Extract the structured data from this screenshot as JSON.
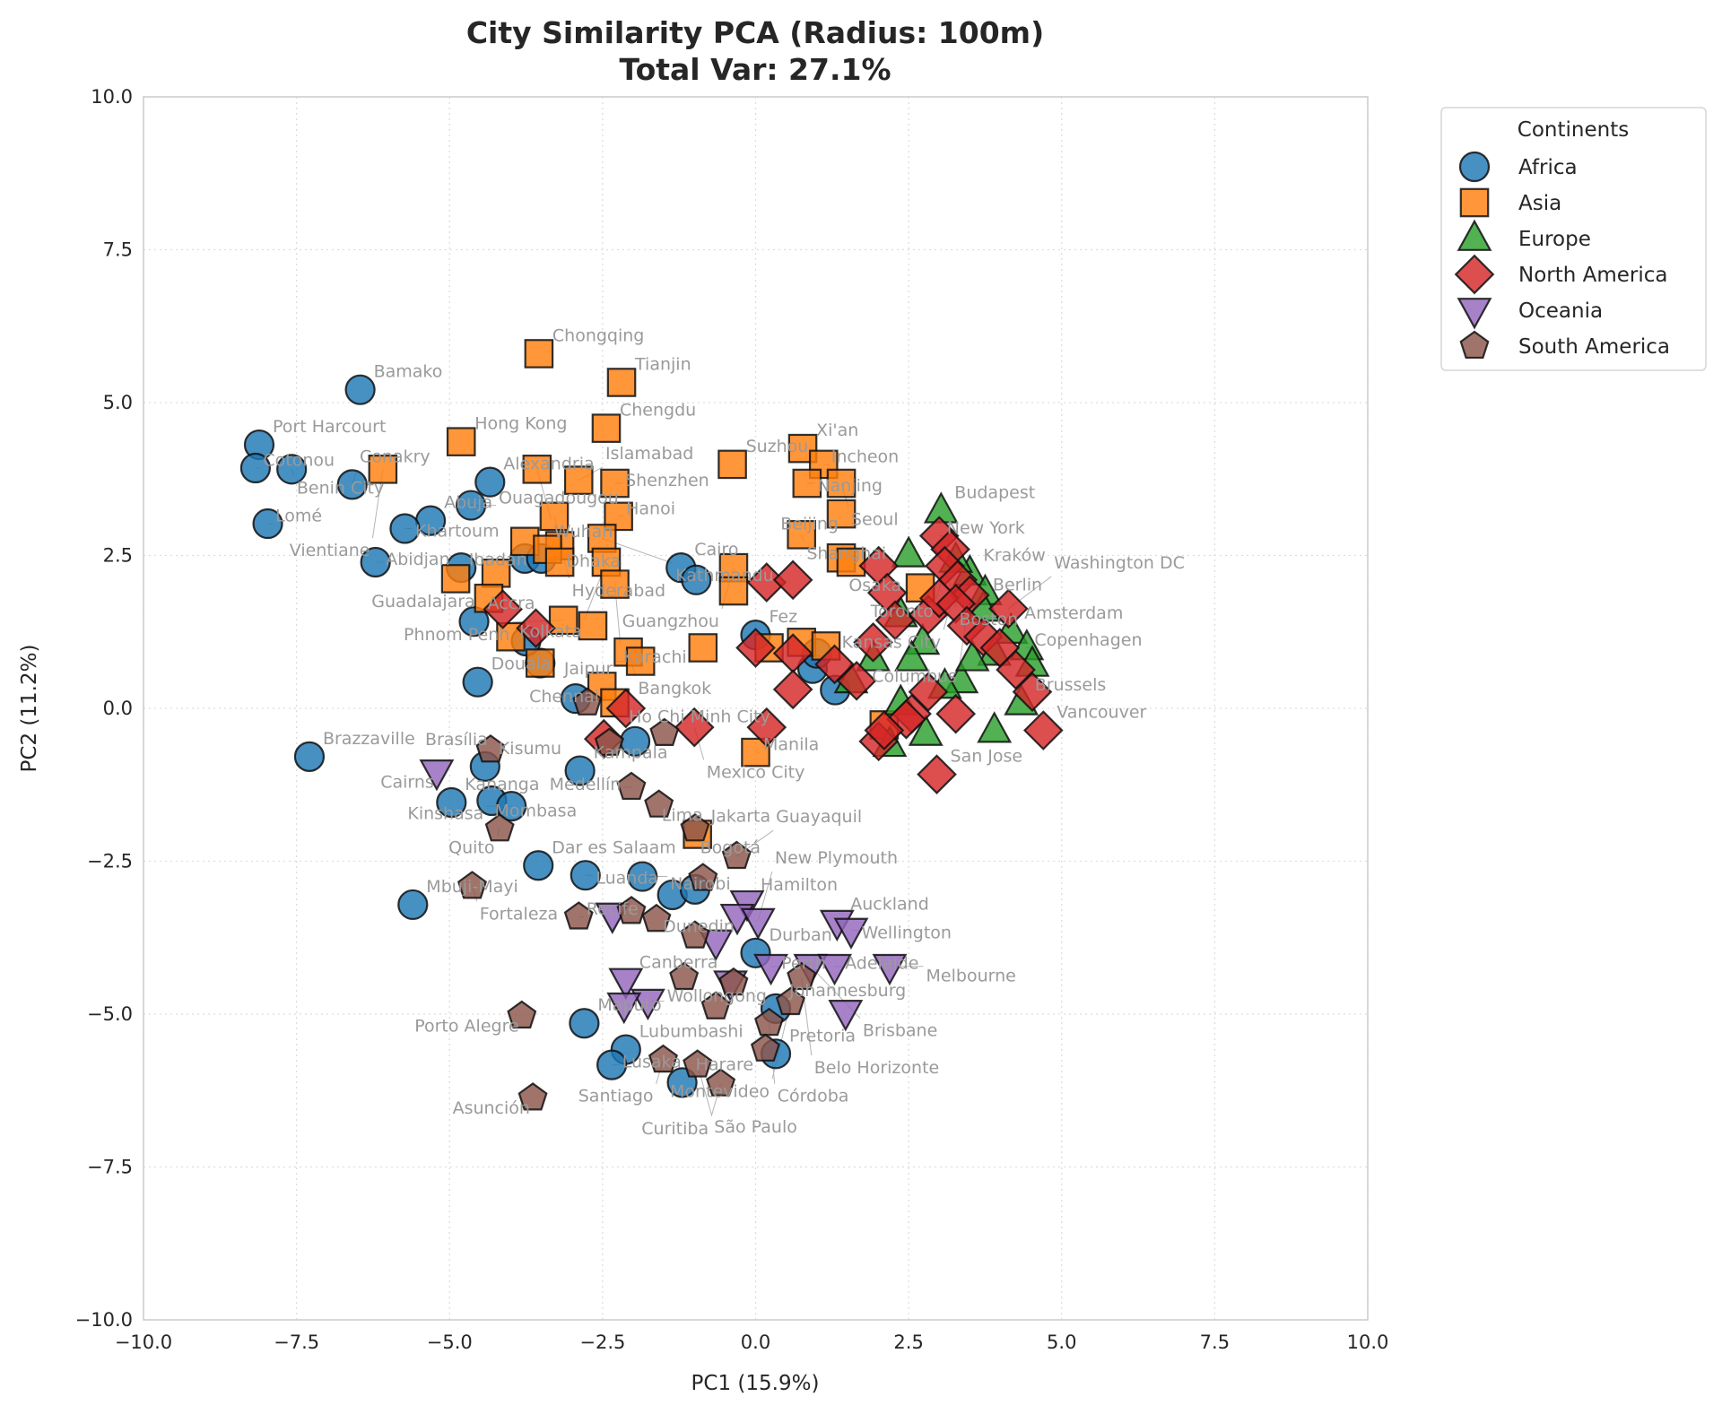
{
  "chart_data": {
    "type": "scatter",
    "title": "City Similarity PCA (Radius: 100m)",
    "subtitle": "Total Var: 27.1%",
    "xlabel": "PC1 (15.9%)",
    "ylabel": "PC2 (11.2%)",
    "xlim": [
      -10,
      10
    ],
    "ylim": [
      -10,
      10
    ],
    "xticks": [
      "−10.0",
      "−7.5",
      "−5.0",
      "−2.5",
      "0.0",
      "2.5",
      "5.0",
      "7.5",
      "10.0"
    ],
    "yticks": [
      "−10.0",
      "−7.5",
      "−5.0",
      "−2.5",
      "0.0",
      "2.5",
      "5.0",
      "7.5",
      "10.0"
    ],
    "grid": true,
    "legend": {
      "title": "Continents",
      "placement": "outside-top-right"
    },
    "series": [
      {
        "name": "Africa",
        "marker": "circle",
        "color": "#1f77b4",
        "points": [
          [
            -6.46,
            5.21,
            "Bamako"
          ],
          [
            -8.11,
            4.31,
            "Port Harcourt"
          ],
          [
            -8.17,
            3.93,
            "Cotonou"
          ],
          [
            -7.58,
            3.91,
            "Benin City"
          ],
          [
            -6.59,
            3.66,
            "Conakry"
          ],
          [
            -7.97,
            3.02,
            "Lomé"
          ],
          [
            -5.31,
            3.07,
            "Abuja"
          ],
          [
            -5.73,
            2.94,
            "Khartoum"
          ],
          [
            -4.65,
            3.32,
            "Ouagadougou"
          ],
          [
            -4.34,
            3.7,
            "Alexandria"
          ],
          [
            -6.21,
            2.39,
            "Abidjan"
          ],
          [
            -4.81,
            2.3,
            "Ibadan"
          ],
          [
            -3.77,
            2.45,
            ""
          ],
          [
            -3.5,
            2.45,
            ""
          ],
          [
            -4.6,
            1.42,
            "Accra"
          ],
          [
            -4.54,
            0.43,
            "Douala"
          ],
          [
            -3.52,
            0.74,
            ""
          ],
          [
            -3.75,
            1.1,
            ""
          ],
          [
            -2.94,
            0.16,
            ""
          ],
          [
            -1.97,
            -0.54,
            ""
          ],
          [
            -2.87,
            -1.02,
            "Kampala"
          ],
          [
            -7.29,
            -0.79,
            "Brazzaville"
          ],
          [
            -4.42,
            -0.95,
            "Kisumu"
          ],
          [
            -4.97,
            -1.54,
            "Kananga"
          ],
          [
            -4.31,
            -1.51,
            "Mombasa"
          ],
          [
            -3.99,
            -1.6,
            "Kinshasa"
          ],
          [
            -3.55,
            -2.57,
            "Dar es Salaam"
          ],
          [
            -2.78,
            -2.73,
            "Luanda"
          ],
          [
            -5.6,
            -3.21,
            "Mbuji-Mayi"
          ],
          [
            -1.85,
            -2.75,
            "Nairobi"
          ],
          [
            -1.36,
            -3.05,
            ""
          ],
          [
            -0.99,
            -2.96,
            ""
          ],
          [
            0.0,
            -4.0,
            "Durban"
          ],
          [
            -2.8,
            -5.15,
            "Maputo"
          ],
          [
            -2.12,
            -5.58,
            "Lubumbashi"
          ],
          [
            -2.35,
            -5.83,
            "Lusaka"
          ],
          [
            -1.2,
            -6.12,
            "Harare"
          ],
          [
            0.33,
            -4.91,
            "Johannesburg"
          ],
          [
            0.33,
            -5.65,
            "Pretoria"
          ],
          [
            -1.22,
            2.3,
            "Cairo"
          ],
          [
            -0.97,
            2.1,
            ""
          ],
          [
            0.0,
            1.2,
            "Fez"
          ],
          [
            0.93,
            0.65,
            ""
          ],
          [
            1.3,
            0.3,
            ""
          ],
          [
            1.0,
            0.9,
            ""
          ]
        ]
      },
      {
        "name": "Asia",
        "marker": "square",
        "color": "#ff7f0e",
        "points": [
          [
            -3.54,
            5.8,
            "Chongqing"
          ],
          [
            -2.19,
            5.33,
            "Tianjin"
          ],
          [
            -2.44,
            4.58,
            "Chengdu"
          ],
          [
            -4.81,
            4.36,
            "Hong Kong"
          ],
          [
            -6.09,
            3.91,
            "Vientiane"
          ],
          [
            -3.57,
            3.91,
            "Wuhan"
          ],
          [
            -2.89,
            3.73,
            "Islamabad"
          ],
          [
            -2.3,
            3.68,
            "Shenzhen"
          ],
          [
            -2.24,
            3.14,
            "Hanoi"
          ],
          [
            -3.29,
            3.14,
            "Dhaka"
          ],
          [
            -3.2,
            2.66,
            "Hyderabad"
          ],
          [
            -2.51,
            2.78,
            "Kathmandu"
          ],
          [
            -0.38,
            3.99,
            "Suzhou"
          ],
          [
            0.77,
            4.25,
            "Xi'an"
          ],
          [
            1.11,
            3.99,
            "Incheon"
          ],
          [
            0.84,
            3.68,
            "Nanjing"
          ],
          [
            1.4,
            3.68,
            "Seoul"
          ],
          [
            1.4,
            3.18,
            "Beijing"
          ],
          [
            0.75,
            2.84,
            "Shanghai"
          ],
          [
            1.4,
            2.46,
            "Osaka"
          ],
          [
            -0.36,
            2.3,
            "Guangzhou"
          ],
          [
            -0.36,
            1.92,
            ""
          ],
          [
            1.56,
            2.39,
            ""
          ],
          [
            -2.44,
            2.39,
            "Kolkata"
          ],
          [
            -2.3,
            2.03,
            "Karachi"
          ],
          [
            -4.24,
            2.21,
            ""
          ],
          [
            -4.9,
            2.12,
            ""
          ],
          [
            -3.77,
            2.73,
            ""
          ],
          [
            -3.4,
            2.6,
            ""
          ],
          [
            -3.2,
            2.39,
            ""
          ],
          [
            -3.14,
            1.44,
            "Phnom Penh"
          ],
          [
            -2.08,
            0.92,
            "Bangkok"
          ],
          [
            -1.88,
            0.77,
            "Jaipur"
          ],
          [
            -2.51,
            0.36,
            "Chennai"
          ],
          [
            -2.3,
            0.09,
            "Ho Chi Minh City"
          ],
          [
            -0.95,
            -2.06,
            "Jakarta"
          ],
          [
            0.0,
            -0.72,
            "Manila"
          ],
          [
            -0.86,
            0.99,
            ""
          ],
          [
            0.22,
            0.99,
            ""
          ],
          [
            0.75,
            1.08,
            ""
          ],
          [
            1.15,
            1.02,
            ""
          ],
          [
            2.69,
            1.97,
            ""
          ],
          [
            2.1,
            -0.27,
            ""
          ],
          [
            -4.36,
            1.8,
            ""
          ],
          [
            -4.0,
            1.17,
            ""
          ],
          [
            -3.52,
            0.74,
            ""
          ],
          [
            -2.66,
            1.35,
            ""
          ]
        ]
      },
      {
        "name": "Europe",
        "marker": "triangle-up",
        "color": "#2ca02c",
        "points": [
          [
            3.03,
            3.23,
            "Budapest"
          ],
          [
            2.5,
            2.51,
            ""
          ],
          [
            3.5,
            2.21,
            "Kraków"
          ],
          [
            3.75,
            1.89,
            "Berlin"
          ],
          [
            2.37,
            1.53,
            ""
          ],
          [
            2.73,
            1.08,
            ""
          ],
          [
            2.55,
            0.81,
            ""
          ],
          [
            3.36,
            0.45,
            ""
          ],
          [
            3.9,
            -0.36,
            ""
          ],
          [
            2.78,
            -0.41,
            ""
          ],
          [
            2.19,
            -0.59,
            ""
          ],
          [
            4.17,
            1.26,
            "Amsterdam"
          ],
          [
            4.43,
            0.99,
            "Copenhagen"
          ],
          [
            4.52,
            0.72,
            ""
          ],
          [
            3.9,
            0.9,
            ""
          ],
          [
            3.54,
            0.81,
            ""
          ],
          [
            1.92,
            0.81,
            ""
          ],
          [
            1.56,
            0.45,
            ""
          ],
          [
            4.34,
            0.09,
            "Brussels"
          ],
          [
            3.09,
            0.36,
            ""
          ],
          [
            2.37,
            0.09,
            ""
          ],
          [
            3.72,
            1.62,
            ""
          ],
          [
            3.27,
            2.42,
            ""
          ]
        ]
      },
      {
        "name": "North America",
        "marker": "diamond",
        "color": "#d62728",
        "points": [
          [
            3.0,
            2.82,
            "New York"
          ],
          [
            3.18,
            2.6,
            "Toronto"
          ],
          [
            3.09,
            2.33,
            "Boston"
          ],
          [
            3.3,
            2.1,
            "Kansas City"
          ],
          [
            3.5,
            1.85,
            "Columbus"
          ],
          [
            4.13,
            1.63,
            "Washington DC"
          ],
          [
            2.96,
            -1.08,
            "San Jose"
          ],
          [
            4.7,
            -0.36,
            "Vancouver"
          ],
          [
            -1.0,
            -0.31,
            "Mexico City"
          ],
          [
            -4.13,
            1.62,
            "Guadalajara"
          ],
          [
            -3.59,
            1.31,
            ""
          ],
          [
            -2.12,
            0.0,
            ""
          ],
          [
            -2.48,
            -0.5,
            ""
          ],
          [
            0.18,
            -0.31,
            ""
          ],
          [
            0.18,
            2.06,
            ""
          ],
          [
            0.61,
            2.1,
            ""
          ],
          [
            0.0,
            0.99,
            ""
          ],
          [
            0.61,
            0.9,
            ""
          ],
          [
            0.61,
            0.31,
            ""
          ],
          [
            1.29,
            0.72,
            ""
          ],
          [
            1.65,
            0.45,
            ""
          ],
          [
            1.92,
            1.08,
            ""
          ],
          [
            2.01,
            2.33,
            ""
          ],
          [
            2.15,
            1.89,
            ""
          ],
          [
            2.28,
            1.44,
            ""
          ],
          [
            2.82,
            1.53,
            ""
          ],
          [
            3.0,
            1.8,
            ""
          ],
          [
            3.27,
            1.71,
            ""
          ],
          [
            3.45,
            1.35,
            ""
          ],
          [
            3.72,
            1.17,
            ""
          ],
          [
            3.99,
            0.99,
            ""
          ],
          [
            4.25,
            0.63,
            ""
          ],
          [
            4.52,
            0.27,
            ""
          ],
          [
            3.27,
            -0.09,
            ""
          ],
          [
            2.55,
            -0.09,
            ""
          ],
          [
            2.82,
            0.27,
            ""
          ],
          [
            2.01,
            -0.54,
            ""
          ],
          [
            2.46,
            -0.18,
            ""
          ],
          [
            2.1,
            -0.36,
            ""
          ]
        ]
      },
      {
        "name": "Oceania",
        "marker": "triangle-down",
        "color": "#9467bd",
        "points": [
          [
            -5.21,
            -1.04,
            "Cairns"
          ],
          [
            -2.12,
            -4.45,
            "Canberra"
          ],
          [
            -1.76,
            -4.79,
            "Wollongong"
          ],
          [
            -2.15,
            -4.85,
            ""
          ],
          [
            -2.34,
            -3.38,
            ""
          ],
          [
            -0.14,
            -3.18,
            "Hamilton"
          ],
          [
            -0.3,
            -3.4,
            "Dunedin"
          ],
          [
            1.33,
            -3.5,
            "Auckland"
          ],
          [
            1.56,
            -3.63,
            "Wellington"
          ],
          [
            0.04,
            -3.47,
            "New Plymouth"
          ],
          [
            -0.65,
            -3.82,
            ""
          ],
          [
            0.25,
            -4.22,
            "Perth"
          ],
          [
            0.9,
            -4.22,
            "Brisbane"
          ],
          [
            1.29,
            -4.22,
            "Adelaide"
          ],
          [
            2.19,
            -4.22,
            "Melbourne"
          ],
          [
            -0.41,
            -4.49,
            ""
          ],
          [
            1.47,
            -4.97,
            ""
          ]
        ]
      },
      {
        "name": "South America",
        "marker": "pentagon",
        "color": "#8c564b",
        "points": [
          [
            -4.33,
            -0.68,
            "Brasília"
          ],
          [
            -4.18,
            -1.97,
            "Quito"
          ],
          [
            -2.03,
            -1.29,
            "Medellín"
          ],
          [
            -1.58,
            -1.58,
            "Lima"
          ],
          [
            -0.99,
            -1.97,
            "Bogotá"
          ],
          [
            -0.31,
            -2.42,
            "Guayaquil"
          ],
          [
            -4.63,
            -2.91,
            "Fortaleza"
          ],
          [
            -2.89,
            -3.41,
            "Recife"
          ],
          [
            -2.03,
            -3.32,
            ""
          ],
          [
            -1.62,
            -3.45,
            ""
          ],
          [
            -2.75,
            0.09,
            ""
          ],
          [
            -1.49,
            -0.41,
            ""
          ],
          [
            -2.39,
            -0.57,
            ""
          ],
          [
            -0.99,
            -3.72,
            ""
          ],
          [
            -1.17,
            -4.4,
            ""
          ],
          [
            -0.65,
            -4.88,
            ""
          ],
          [
            -0.36,
            -4.49,
            ""
          ],
          [
            0.75,
            -4.4,
            "Belo Horizonte"
          ],
          [
            0.57,
            -4.81,
            "Montevideo"
          ],
          [
            0.22,
            -5.15,
            "Córdoba"
          ],
          [
            0.16,
            -5.57,
            ""
          ],
          [
            -1.51,
            -5.75,
            "Santiago"
          ],
          [
            -0.95,
            -5.83,
            "São Paulo"
          ],
          [
            -0.57,
            -6.14,
            "Curitiba"
          ],
          [
            -3.64,
            -6.37,
            "Asunción"
          ],
          [
            -3.82,
            -5.03,
            "Porto Alegre"
          ],
          [
            -0.86,
            -2.78,
            ""
          ]
        ]
      }
    ]
  }
}
